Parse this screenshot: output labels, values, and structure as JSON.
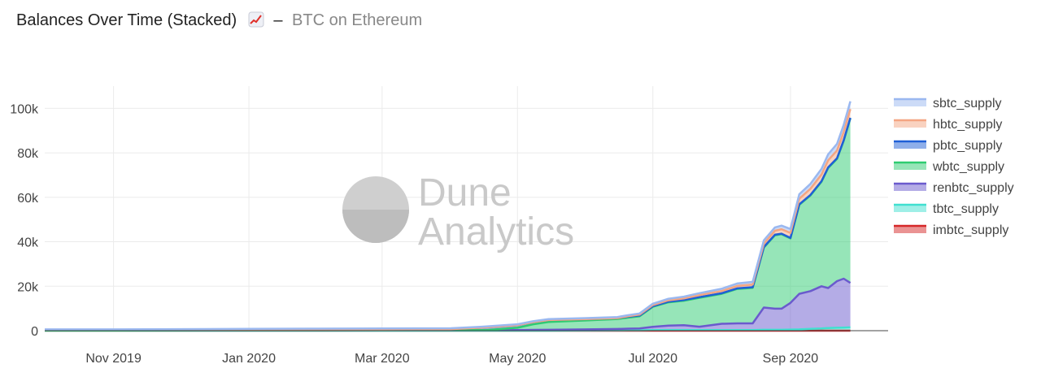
{
  "header": {
    "title": "Balances Over Time (Stacked)",
    "emoji_icon": "chart-increasing-icon",
    "separator": "–",
    "subtitle": "BTC on Ethereum"
  },
  "watermark": {
    "line1": "Dune",
    "line2": "Analytics"
  },
  "chart_data": {
    "type": "area",
    "stacked": true,
    "title": "Balances Over Time (Stacked)",
    "xlabel": "",
    "ylabel": "",
    "x_ticks": [
      {
        "date": "2019-11-01",
        "label": "Nov 2019"
      },
      {
        "date": "2020-01-01",
        "label": "Jan 2020"
      },
      {
        "date": "2020-03-01",
        "label": "Mar 2020"
      },
      {
        "date": "2020-05-01",
        "label": "May 2020"
      },
      {
        "date": "2020-07-01",
        "label": "Jul 2020"
      },
      {
        "date": "2020-09-01",
        "label": "Sep 2020"
      }
    ],
    "xlim": [
      "2019-10-01",
      "2020-10-15"
    ],
    "ylim": [
      0,
      110000
    ],
    "y_ticks": [
      {
        "value": 0,
        "label": "0"
      },
      {
        "value": 20000,
        "label": "20k"
      },
      {
        "value": 40000,
        "label": "40k"
      },
      {
        "value": 60000,
        "label": "60k"
      },
      {
        "value": 80000,
        "label": "80k"
      },
      {
        "value": 100000,
        "label": "100k"
      }
    ],
    "grid": true,
    "legend_position": "right",
    "x": [
      "2019-10-01",
      "2019-11-01",
      "2019-12-01",
      "2020-01-01",
      "2020-02-01",
      "2020-03-01",
      "2020-04-01",
      "2020-04-15",
      "2020-04-17",
      "2020-05-01",
      "2020-05-08",
      "2020-05-15",
      "2020-06-01",
      "2020-06-15",
      "2020-06-20",
      "2020-06-25",
      "2020-07-01",
      "2020-07-08",
      "2020-07-15",
      "2020-07-22",
      "2020-08-01",
      "2020-08-08",
      "2020-08-15",
      "2020-08-20",
      "2020-08-25",
      "2020-08-28",
      "2020-09-01",
      "2020-09-05",
      "2020-09-10",
      "2020-09-15",
      "2020-09-18",
      "2020-09-22",
      "2020-09-25",
      "2020-09-28"
    ],
    "series": [
      {
        "name": "imbtc_supply",
        "color": "#d62728",
        "values": [
          0,
          0,
          0,
          0,
          0,
          0,
          0,
          0,
          0,
          0,
          0,
          0,
          0,
          0,
          0,
          0,
          0,
          0,
          0,
          0,
          0,
          0,
          0,
          0,
          0,
          0,
          0,
          0,
          0,
          0,
          0,
          0,
          0,
          0
        ]
      },
      {
        "name": "tbtc_supply",
        "color": "#40e0d0",
        "values": [
          0,
          0,
          0,
          0,
          0,
          0,
          0,
          0,
          0,
          0,
          0,
          0,
          100,
          150,
          200,
          200,
          250,
          250,
          300,
          300,
          300,
          300,
          300,
          400,
          400,
          400,
          500,
          600,
          800,
          1000,
          1200,
          1300,
          1400,
          1500
        ]
      },
      {
        "name": "renbtc_supply",
        "color": "#6a5acd",
        "values": [
          100,
          100,
          150,
          200,
          200,
          250,
          300,
          300,
          300,
          300,
          350,
          400,
          500,
          600,
          700,
          800,
          1500,
          2000,
          2200,
          1500,
          2800,
          3000,
          3000,
          10000,
          9500,
          9500,
          12000,
          16000,
          17000,
          19000,
          18000,
          21000,
          22000,
          20000
        ]
      },
      {
        "name": "wbtc_supply",
        "color": "#2ecc71",
        "values": [
          0,
          0,
          0,
          0,
          0,
          0,
          0,
          0,
          0,
          1000,
          2500,
          3500,
          4000,
          4500,
          5000,
          5500,
          9000,
          10500,
          11000,
          13000,
          13500,
          15500,
          16000,
          27000,
          33000,
          33500,
          29000,
          40000,
          43000,
          47000,
          54000,
          55000,
          62000,
          74000
        ]
      },
      {
        "name": "pbtc_supply",
        "color": "#1f5fd6",
        "values": [
          200,
          200,
          250,
          300,
          350,
          400,
          400,
          1100,
          1200,
          1200,
          1000,
          900,
          600,
          400,
          400,
          350,
          300,
          300,
          300,
          300,
          250,
          250,
          250,
          250,
          250,
          250,
          250,
          250,
          250,
          250,
          250,
          250,
          250,
          250
        ]
      },
      {
        "name": "hbtc_supply",
        "color": "#f4a582",
        "values": [
          0,
          0,
          0,
          0,
          0,
          0,
          0,
          0,
          0,
          0,
          0,
          0,
          0,
          0,
          200,
          400,
          500,
          600,
          700,
          900,
          1000,
          1100,
          1200,
          1500,
          1800,
          2000,
          2200,
          2500,
          2800,
          3000,
          3200,
          3500,
          3700,
          3900
        ]
      },
      {
        "name": "sbtc_supply",
        "color": "#9ab8f0",
        "values": [
          300,
          300,
          300,
          300,
          350,
          350,
          400,
          400,
          400,
          400,
          400,
          400,
          450,
          500,
          500,
          500,
          600,
          700,
          800,
          900,
          1000,
          1100,
          1200,
          1500,
          1500,
          1600,
          1800,
          2000,
          2200,
          2500,
          2700,
          3000,
          3200,
          3500
        ]
      }
    ],
    "legend_order": [
      "sbtc_supply",
      "hbtc_supply",
      "pbtc_supply",
      "wbtc_supply",
      "renbtc_supply",
      "tbtc_supply",
      "imbtc_supply"
    ]
  }
}
